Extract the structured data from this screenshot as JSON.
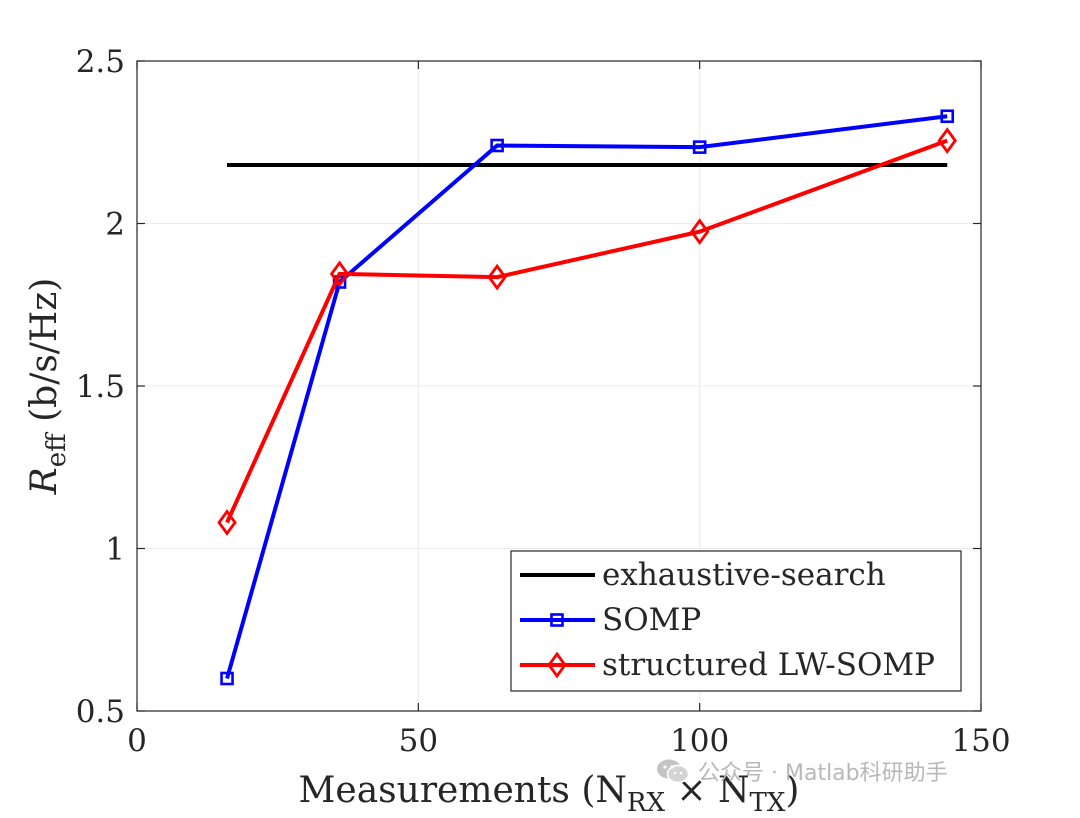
{
  "chart_data": {
    "type": "line",
    "title": "",
    "xlabel": "Measurements (N",
    "xlabel_sub_rx": "RX",
    "xlabel_times": " × N",
    "xlabel_sub_tx": "TX",
    "xlabel_close": ")",
    "ylabel_R": "R",
    "ylabel_sub": "eff",
    "ylabel_units": " (b/s/Hz)",
    "xlim": [
      0,
      150
    ],
    "ylim": [
      0.5,
      2.5
    ],
    "xticks": [
      0,
      50,
      100,
      150
    ],
    "yticks": [
      0.5,
      1,
      1.5,
      2,
      2.5
    ],
    "xtick_labels": [
      "0",
      "50",
      "100",
      "150"
    ],
    "ytick_labels": [
      "0.5",
      "1",
      "1.5",
      "2",
      "2.5"
    ],
    "grid": true,
    "legend_location": "bottom-right",
    "series": [
      {
        "name": "exhaustive-search",
        "color": "#000000",
        "marker": "none",
        "x": [
          16,
          144
        ],
        "y": [
          2.18,
          2.18
        ]
      },
      {
        "name": "SOMP",
        "color": "#0000ff",
        "marker": "square",
        "x": [
          16,
          36,
          64,
          100,
          144
        ],
        "y": [
          0.6,
          1.82,
          2.24,
          2.235,
          2.33
        ]
      },
      {
        "name": "structured LW-SOMP",
        "color": "#ff0000",
        "marker": "diamond",
        "x": [
          16,
          36,
          64,
          100,
          144
        ],
        "y": [
          1.08,
          1.845,
          1.835,
          1.975,
          2.255
        ]
      }
    ]
  },
  "watermark": {
    "text": "公众号 · Matlab科研助手",
    "icon": "wechat-icon",
    "color": "#b8b8b8"
  }
}
